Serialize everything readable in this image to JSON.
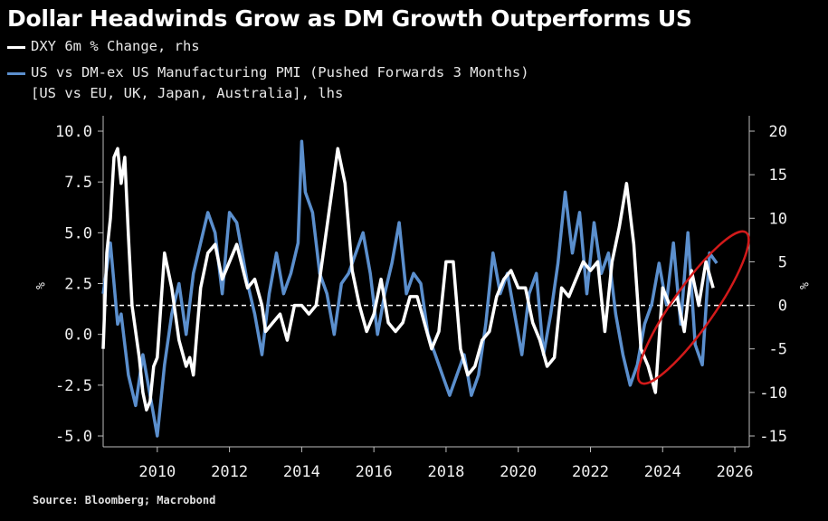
{
  "title": "Dollar Headwinds Grow as DM Growth Outperforms US",
  "legend": {
    "dxy": "DXY 6m % Change, rhs",
    "pmi_line1": "US vs DM-ex US Manufacturing PMI (Pushed Forwards 3 Months)",
    "pmi_line2": "[US vs EU, UK, Japan, Australia], lhs"
  },
  "source": "Source: Bloomberg; Macrobond",
  "colors": {
    "background": "#000000",
    "dxy": "#ffffff",
    "pmi": "#5b8fcd",
    "annotation": "#d21a1a",
    "zero_line": "#ffffff"
  },
  "chart_data": {
    "type": "line",
    "x_ticks": [
      "2010",
      "2012",
      "2014",
      "2016",
      "2018",
      "2020",
      "2022",
      "2024",
      "2026"
    ],
    "left_axis": {
      "ticks": [
        "10.0",
        "7.5",
        "5.0",
        "2.5",
        "0.0",
        "-2.5",
        "-5.0"
      ],
      "label": "%",
      "range": [
        -5.5,
        10.5
      ]
    },
    "right_axis": {
      "ticks": [
        "20",
        "15",
        "10",
        "5",
        "0",
        "-5",
        "-10",
        "-15"
      ],
      "label": "%",
      "range": [
        -16,
        21
      ]
    },
    "reference_line": {
      "axis": "right",
      "value": 0,
      "style": "dashed"
    },
    "annotation": {
      "shape": "ellipse",
      "x_range": [
        2023.8,
        2025.9
      ],
      "value_range_rhs": [
        -11,
        10.5
      ]
    },
    "series": [
      {
        "name": "DXY 6m % Change, rhs",
        "axis": "right",
        "x": [
          2008.5,
          2008.6,
          2008.7,
          2008.8,
          2008.9,
          2009.0,
          2009.1,
          2009.2,
          2009.3,
          2009.4,
          2009.5,
          2009.6,
          2009.7,
          2009.8,
          2009.9,
          2010.0,
          2010.2,
          2010.4,
          2010.6,
          2010.8,
          2010.9,
          2011.0,
          2011.2,
          2011.4,
          2011.6,
          2011.8,
          2012.0,
          2012.2,
          2012.5,
          2012.7,
          2012.9,
          2013.0,
          2013.2,
          2013.4,
          2013.6,
          2013.8,
          2014.0,
          2014.2,
          2014.4,
          2014.6,
          2014.8,
          2015.0,
          2015.2,
          2015.4,
          2015.6,
          2015.8,
          2016.0,
          2016.2,
          2016.4,
          2016.6,
          2016.8,
          2017.0,
          2017.2,
          2017.4,
          2017.6,
          2017.8,
          2018.0,
          2018.2,
          2018.4,
          2018.6,
          2018.8,
          2019.0,
          2019.2,
          2019.4,
          2019.6,
          2019.8,
          2020.0,
          2020.2,
          2020.4,
          2020.6,
          2020.8,
          2021.0,
          2021.2,
          2021.4,
          2021.6,
          2021.8,
          2022.0,
          2022.2,
          2022.4,
          2022.6,
          2022.8,
          2023.0,
          2023.2,
          2023.4,
          2023.6,
          2023.8,
          2024.0,
          2024.2,
          2024.4,
          2024.6,
          2024.8,
          2025.0,
          2025.2,
          2025.4
        ],
        "y": [
          -5,
          6,
          10,
          17,
          18,
          14,
          17,
          8,
          0,
          -3,
          -6,
          -10,
          -12,
          -11,
          -7,
          -6,
          6,
          2,
          -4,
          -7,
          -6,
          -8,
          2,
          6,
          7,
          3,
          5,
          7,
          2,
          3,
          0,
          -3,
          -2,
          -1,
          -4,
          0,
          0,
          -1,
          0,
          6,
          12,
          18,
          14,
          4,
          0,
          -3,
          -1,
          3,
          -2,
          -3,
          -2,
          1,
          1,
          -2,
          -5,
          -3,
          5,
          5,
          -5,
          -8,
          -7,
          -4,
          -3,
          1,
          3,
          4,
          2,
          2,
          -2,
          -4,
          -7,
          -6,
          2,
          1,
          3,
          5,
          4,
          5,
          -3,
          5,
          9,
          14,
          7,
          -5,
          -7,
          -10,
          2,
          0,
          1,
          -3,
          4,
          0,
          5,
          2
        ]
      },
      {
        "name": "US vs DM-ex US Manufacturing PMI (Pushed Forwards 3 Months) [US vs EU, UK, Japan, Australia], lhs",
        "axis": "left",
        "x": [
          2008.5,
          2008.7,
          2008.9,
          2009.0,
          2009.2,
          2009.4,
          2009.6,
          2009.8,
          2010.0,
          2010.2,
          2010.4,
          2010.6,
          2010.8,
          2011.0,
          2011.2,
          2011.4,
          2011.6,
          2011.8,
          2012.0,
          2012.2,
          2012.5,
          2012.7,
          2012.9,
          2013.1,
          2013.3,
          2013.5,
          2013.7,
          2013.9,
          2014.0,
          2014.1,
          2014.3,
          2014.5,
          2014.7,
          2014.9,
          2015.1,
          2015.3,
          2015.5,
          2015.7,
          2015.9,
          2016.1,
          2016.3,
          2016.5,
          2016.7,
          2016.9,
          2017.1,
          2017.3,
          2017.5,
          2017.7,
          2017.9,
          2018.1,
          2018.3,
          2018.5,
          2018.7,
          2018.9,
          2019.1,
          2019.3,
          2019.5,
          2019.7,
          2019.9,
          2020.1,
          2020.3,
          2020.5,
          2020.7,
          2020.9,
          2021.1,
          2021.3,
          2021.5,
          2021.7,
          2021.9,
          2022.1,
          2022.3,
          2022.5,
          2022.7,
          2022.9,
          2023.1,
          2023.3,
          2023.5,
          2023.7,
          2023.9,
          2024.1,
          2024.3,
          2024.5,
          2024.7,
          2024.9,
          2025.1,
          2025.3,
          2025.5
        ],
        "y": [
          2.0,
          4.5,
          0.5,
          1.0,
          -2.0,
          -3.5,
          -1.0,
          -3.0,
          -5.0,
          -1.5,
          1.0,
          2.5,
          0.0,
          3.0,
          4.5,
          6.0,
          5.0,
          2.0,
          6.0,
          5.5,
          2.5,
          1.0,
          -1.0,
          2.0,
          4.0,
          2.0,
          3.0,
          4.5,
          9.5,
          7.0,
          6.0,
          3.0,
          2.0,
          0.0,
          2.5,
          3.0,
          4.0,
          5.0,
          3.0,
          0.0,
          2.0,
          3.5,
          5.5,
          2.0,
          3.0,
          2.5,
          0.0,
          -1.0,
          -2.0,
          -3.0,
          -2.0,
          -1.0,
          -3.0,
          -2.0,
          0.5,
          4.0,
          2.0,
          3.0,
          1.0,
          -1.0,
          2.0,
          3.0,
          -1.0,
          1.0,
          3.5,
          7.0,
          4.0,
          6.0,
          2.0,
          5.5,
          3.0,
          4.0,
          1.0,
          -1.0,
          -2.5,
          -1.5,
          0.5,
          1.5,
          3.5,
          1.5,
          4.5,
          0.5,
          5.0,
          -0.5,
          -1.5,
          4.0,
          3.5
        ]
      }
    ]
  }
}
